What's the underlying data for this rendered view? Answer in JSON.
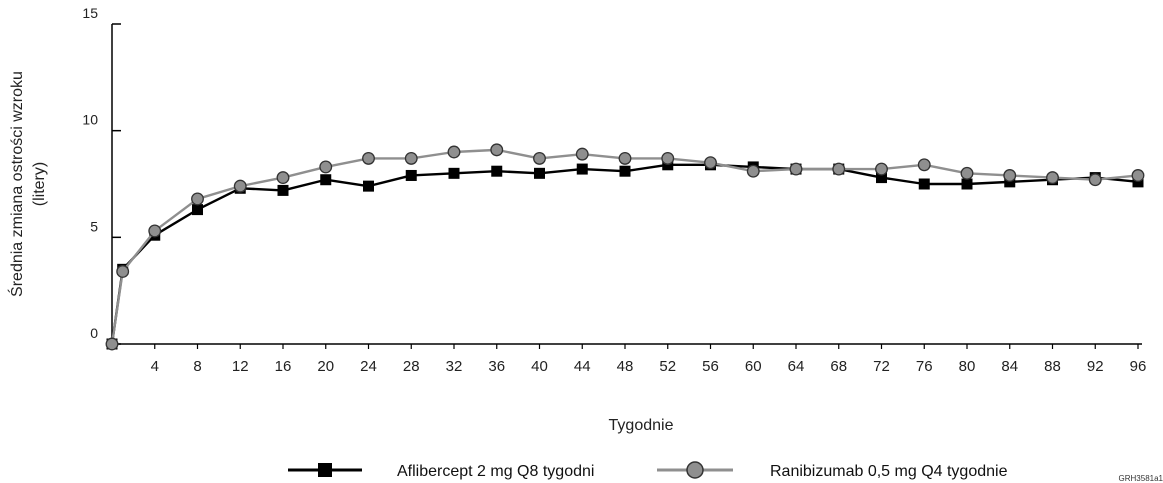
{
  "chart_data": {
    "type": "line",
    "x": [
      0,
      1,
      4,
      8,
      12,
      16,
      20,
      24,
      28,
      32,
      36,
      40,
      44,
      48,
      52,
      56,
      60,
      64,
      68,
      72,
      76,
      80,
      84,
      88,
      92,
      96
    ],
    "x_ticks": [
      4,
      8,
      12,
      16,
      20,
      24,
      28,
      32,
      36,
      40,
      44,
      48,
      52,
      56,
      60,
      64,
      68,
      72,
      76,
      80,
      84,
      88,
      92,
      96
    ],
    "y_ticks": [
      0,
      5,
      10,
      15
    ],
    "xlim": [
      0,
      96
    ],
    "ylim": [
      0,
      15
    ],
    "xlabel": "Tygodnie",
    "ylabel": "Średnia zmiana ostrości wzroku",
    "ylabel_unit": "(litery)",
    "grid": false,
    "legend_position": "bottom",
    "series": [
      {
        "name": "Aflibercept 2 mg Q8 tygodni",
        "marker": "square",
        "color": "#000000",
        "values": [
          0,
          3.5,
          5.1,
          6.3,
          7.3,
          7.2,
          7.7,
          7.4,
          7.9,
          8.0,
          8.1,
          8.0,
          8.2,
          8.1,
          8.4,
          8.4,
          8.3,
          8.2,
          8.2,
          7.8,
          7.5,
          7.5,
          7.6,
          7.7,
          7.8,
          7.6
        ]
      },
      {
        "name": "Ranibizumab 0,5 mg Q4 tygodnie",
        "marker": "circle",
        "color": "#8f8f8f",
        "values": [
          0,
          3.4,
          5.3,
          6.8,
          7.4,
          7.8,
          8.3,
          8.7,
          8.7,
          9.0,
          9.1,
          8.7,
          8.9,
          8.7,
          8.7,
          8.5,
          8.1,
          8.2,
          8.2,
          8.2,
          8.4,
          8.0,
          7.9,
          7.8,
          7.7,
          7.9
        ]
      }
    ]
  },
  "footer_code": "GRH3581a1"
}
